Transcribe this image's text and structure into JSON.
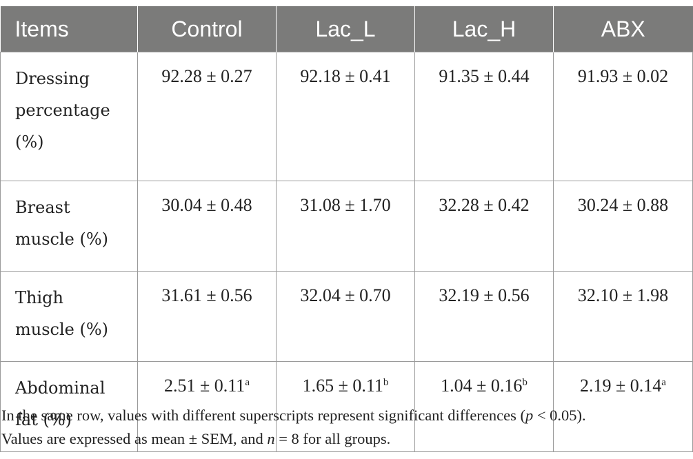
{
  "headers": [
    "Items",
    "Control",
    "Lac_L",
    "Lac_H",
    "ABX"
  ],
  "rows": [
    {
      "label_lines": [
        "Dressing",
        "percentage",
        "(%)"
      ],
      "values": [
        {
          "value": "92.28 ± 0.27",
          "sup": ""
        },
        {
          "value": "92.18 ± 0.41",
          "sup": ""
        },
        {
          "value": "91.35 ± 0.44",
          "sup": ""
        },
        {
          "value": "91.93 ± 0.02",
          "sup": ""
        }
      ]
    },
    {
      "label_lines": [
        "Breast",
        "muscle (%)"
      ],
      "values": [
        {
          "value": "30.04 ± 0.48",
          "sup": ""
        },
        {
          "value": "31.08 ± 1.70",
          "sup": ""
        },
        {
          "value": "32.28 ± 0.42",
          "sup": ""
        },
        {
          "value": "30.24 ± 0.88",
          "sup": ""
        }
      ]
    },
    {
      "label_lines": [
        "Thigh",
        "muscle (%)"
      ],
      "values": [
        {
          "value": "31.61 ± 0.56",
          "sup": ""
        },
        {
          "value": "32.04 ± 0.70",
          "sup": ""
        },
        {
          "value": "32.19 ± 0.56",
          "sup": ""
        },
        {
          "value": "32.10 ± 1.98",
          "sup": ""
        }
      ]
    },
    {
      "label_lines": [
        "Abdominal",
        "fat (%)"
      ],
      "values": [
        {
          "value": "2.51 ± 0.11",
          "sup": "a"
        },
        {
          "value": "1.65 ± 0.11",
          "sup": "b"
        },
        {
          "value": "1.04 ± 0.16",
          "sup": "b"
        },
        {
          "value": "2.19 ± 0.14",
          "sup": "a"
        }
      ]
    }
  ],
  "footnote": {
    "line1_pre": "In the same row, values with different superscripts represent significant differences (",
    "line1_p": "p",
    "line1_post": " < 0.05).",
    "line2_pre": "Values are expressed as mean ± SEM, and ",
    "line2_n": "n",
    "line2_post": " = 8 for all groups."
  }
}
